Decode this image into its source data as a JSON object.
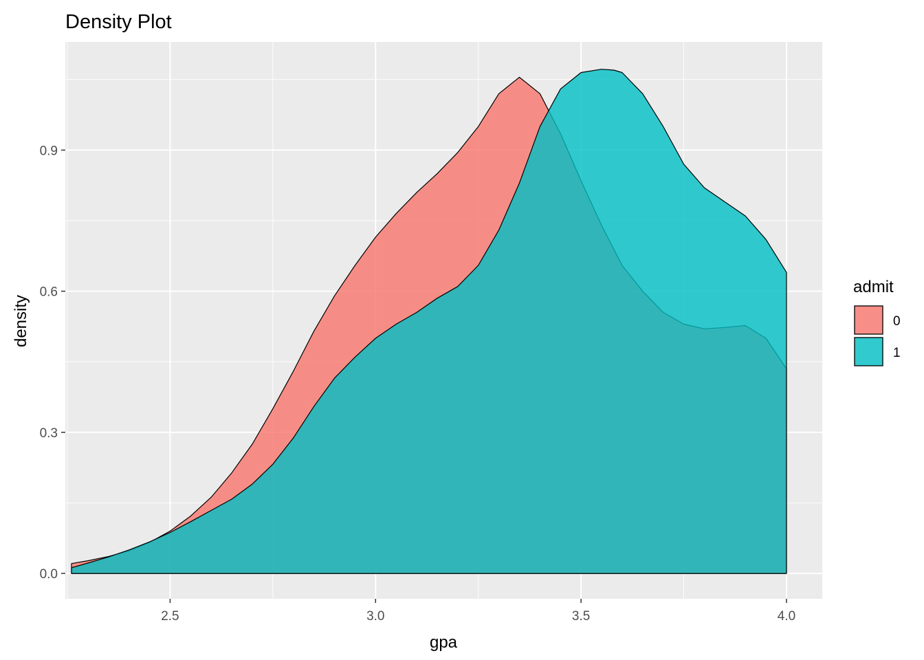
{
  "chart_data": {
    "type": "area",
    "title": "Density Plot",
    "xlabel": "gpa",
    "ylabel": "density",
    "xlim": [
      2.245,
      4.087
    ],
    "ylim": [
      -0.054,
      1.13
    ],
    "x_ticks": [
      2.5,
      3.0,
      3.5,
      4.0
    ],
    "x_tick_labels": [
      "2.5",
      "3.0",
      "3.5",
      "4.0"
    ],
    "y_ticks": [
      0.0,
      0.3,
      0.6,
      0.9
    ],
    "y_tick_labels": [
      "0.0",
      "0.3",
      "0.6",
      "0.9"
    ],
    "grid": true,
    "legend": {
      "title": "admit",
      "position": "right"
    },
    "series": [
      {
        "name": "0",
        "color": "#F8766D",
        "x": [
          2.26,
          2.3,
          2.35,
          2.4,
          2.45,
          2.5,
          2.55,
          2.6,
          2.65,
          2.7,
          2.75,
          2.8,
          2.85,
          2.9,
          2.95,
          3.0,
          3.05,
          3.1,
          3.15,
          3.2,
          3.25,
          3.3,
          3.35,
          3.4,
          3.45,
          3.5,
          3.55,
          3.6,
          3.65,
          3.7,
          3.75,
          3.8,
          3.85,
          3.9,
          3.95,
          4.0
        ],
        "values": [
          0.021,
          0.027,
          0.036,
          0.048,
          0.066,
          0.09,
          0.122,
          0.162,
          0.214,
          0.275,
          0.35,
          0.43,
          0.515,
          0.59,
          0.655,
          0.715,
          0.765,
          0.81,
          0.85,
          0.895,
          0.95,
          1.02,
          1.055,
          1.02,
          0.935,
          0.835,
          0.74,
          0.655,
          0.6,
          0.555,
          0.53,
          0.52,
          0.523,
          0.527,
          0.5,
          0.435
        ]
      },
      {
        "name": "1",
        "color": "#00BFC4",
        "x": [
          2.26,
          2.3,
          2.35,
          2.4,
          2.45,
          2.5,
          2.55,
          2.6,
          2.65,
          2.7,
          2.75,
          2.8,
          2.85,
          2.9,
          2.95,
          3.0,
          3.05,
          3.1,
          3.15,
          3.2,
          3.25,
          3.3,
          3.35,
          3.4,
          3.45,
          3.5,
          3.55,
          3.58,
          3.6,
          3.65,
          3.7,
          3.75,
          3.8,
          3.85,
          3.9,
          3.95,
          4.0
        ],
        "values": [
          0.012,
          0.022,
          0.035,
          0.05,
          0.067,
          0.087,
          0.11,
          0.134,
          0.158,
          0.19,
          0.232,
          0.288,
          0.355,
          0.415,
          0.46,
          0.5,
          0.53,
          0.555,
          0.585,
          0.61,
          0.655,
          0.73,
          0.83,
          0.95,
          1.03,
          1.065,
          1.072,
          1.07,
          1.065,
          1.02,
          0.95,
          0.87,
          0.82,
          0.79,
          0.76,
          0.71,
          0.64
        ]
      }
    ]
  }
}
